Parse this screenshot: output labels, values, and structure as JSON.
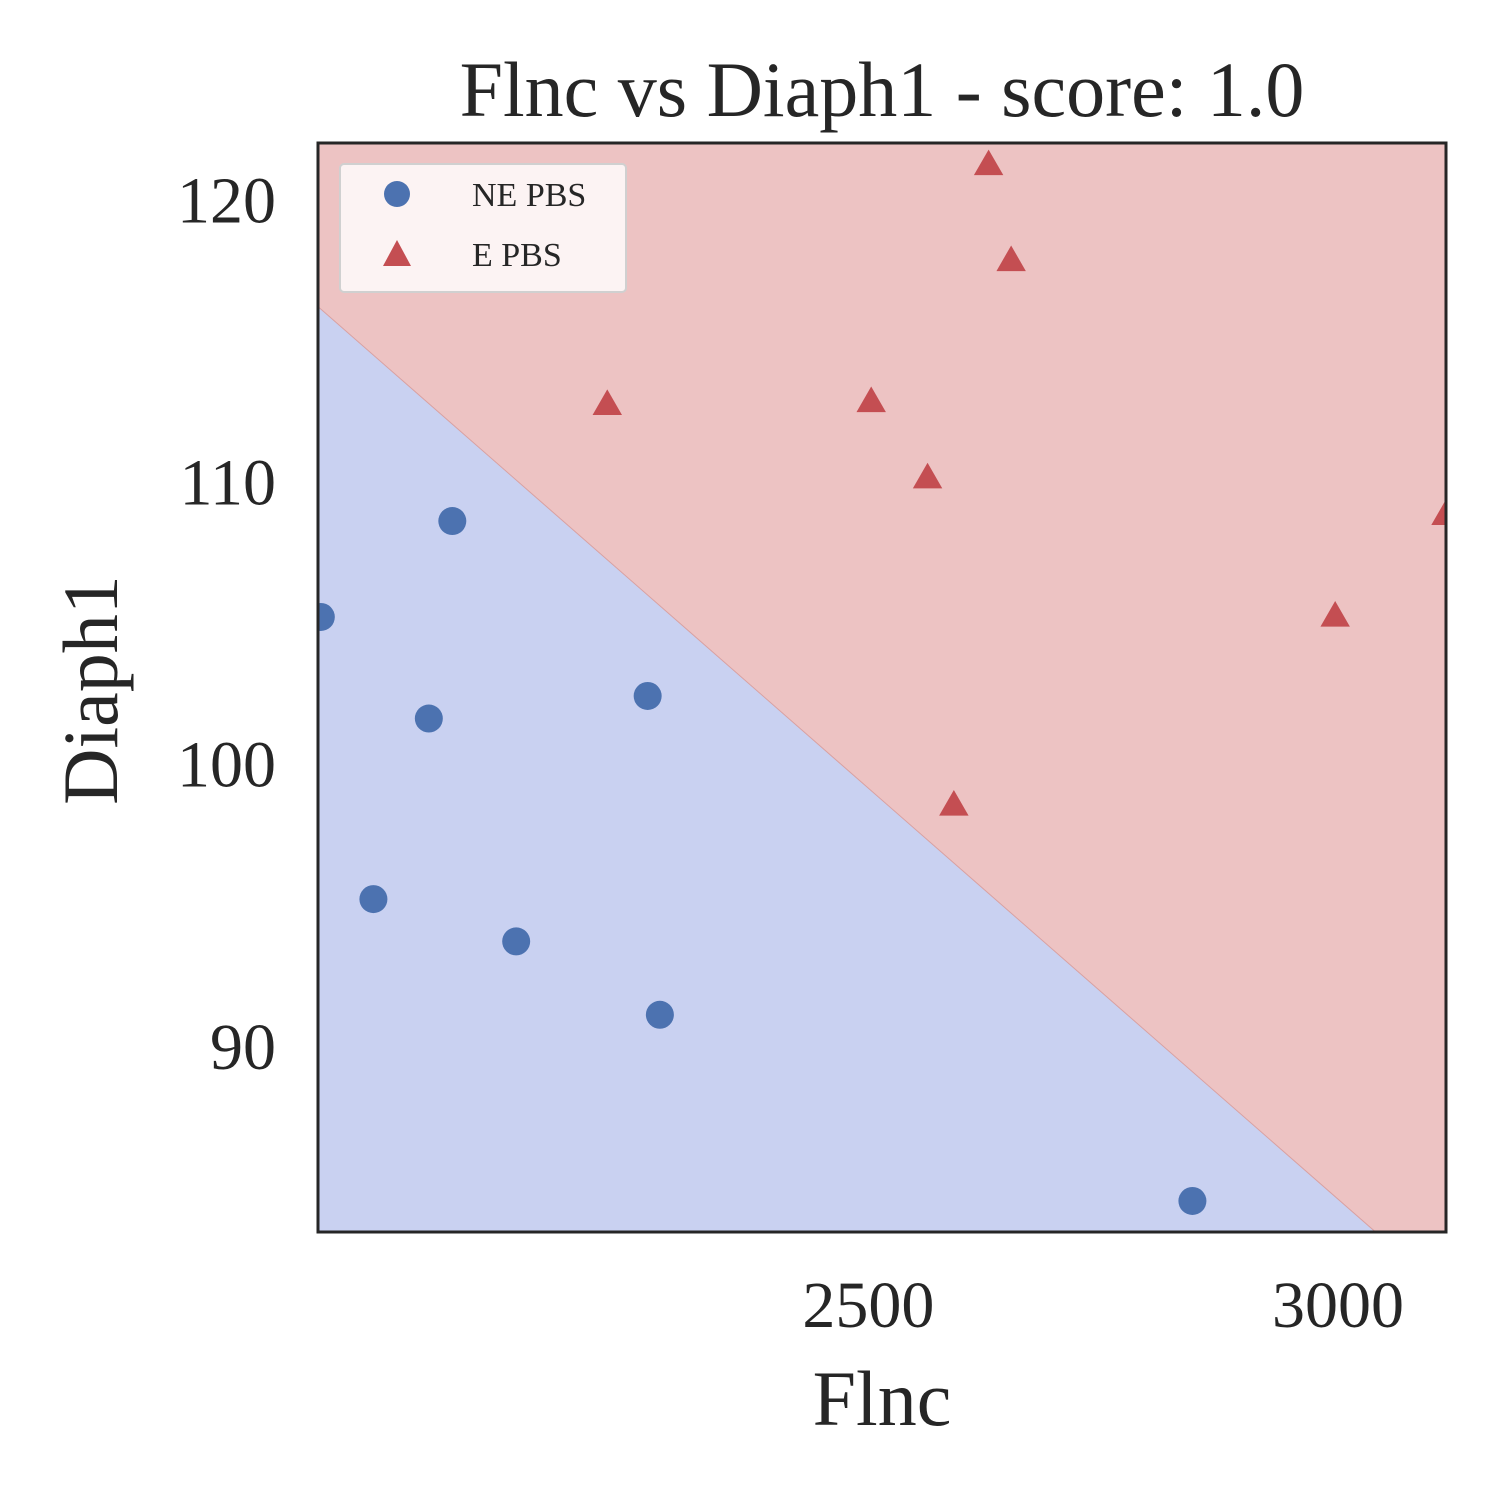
{
  "chart_data": {
    "type": "scatter",
    "title": "Flnc vs Diaph1 - score: 1.0",
    "xlabel": "Flnc",
    "ylabel": "Diaph1",
    "xlim": [
      1914,
      3115
    ],
    "ylim": [
      83.4,
      122.0
    ],
    "x_ticks": [
      2500,
      3000
    ],
    "y_ticks": [
      90,
      100,
      110,
      120
    ],
    "grid": false,
    "legend_position": "top-left",
    "decision_boundary": {
      "line": [
        [
          1914,
          116.2
        ],
        [
          3040,
          83.4
        ]
      ],
      "below_region_class": "NE PBS",
      "above_region_class": "E PBS",
      "below_color": "#c9d1f1",
      "above_color": "#edc3c3"
    },
    "series": [
      {
        "name": "NE PBS",
        "marker": "circle",
        "color": "#4c72b0",
        "points": [
          [
            1917,
            105.2
          ],
          [
            2057,
            108.6
          ],
          [
            2032,
            101.6
          ],
          [
            1973,
            95.2
          ],
          [
            2125,
            93.7
          ],
          [
            2265,
            102.4
          ],
          [
            2278,
            91.1
          ],
          [
            2845,
            84.5
          ]
        ]
      },
      {
        "name": "E PBS",
        "marker": "triangle",
        "color": "#c44e52",
        "points": [
          [
            2222,
            112.7
          ],
          [
            2503,
            112.8
          ],
          [
            2563,
            110.1
          ],
          [
            2591,
            98.5
          ],
          [
            2628,
            121.2
          ],
          [
            2652,
            117.8
          ],
          [
            2997,
            105.2
          ],
          [
            3115,
            108.8
          ]
        ]
      }
    ]
  }
}
